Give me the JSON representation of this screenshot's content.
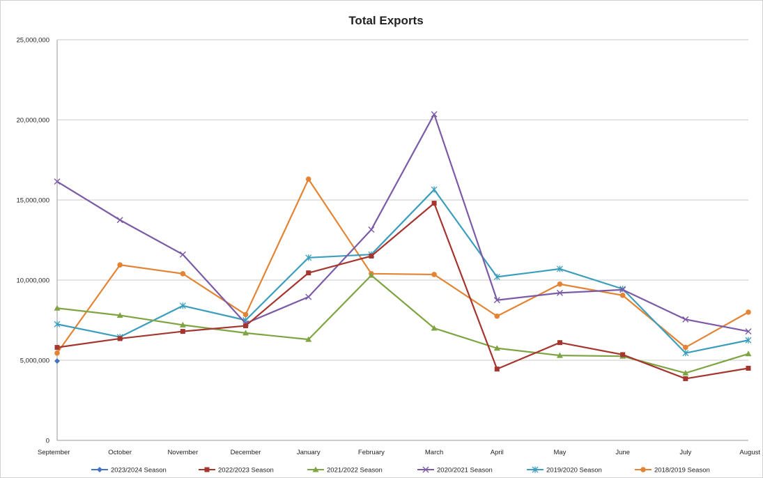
{
  "chart_data": {
    "type": "line",
    "title": "Total Exports",
    "xlabel": "",
    "ylabel": "",
    "categories": [
      "September",
      "October",
      "November",
      "December",
      "January",
      "February",
      "March",
      "April",
      "May",
      "June",
      "July",
      "August"
    ],
    "ylim": [
      0,
      25000000
    ],
    "yticks": [
      0,
      5000000,
      10000000,
      15000000,
      20000000,
      25000000
    ],
    "ytick_labels": [
      "0",
      "5,000,000",
      "10,000,000",
      "15,000,000",
      "20,000,000",
      "25,000,000"
    ],
    "grid": "horizontal",
    "legend_position": "bottom",
    "series": [
      {
        "name": "2023/2024 Season",
        "color": "#4472c4",
        "marker": "diamond",
        "values": [
          4950000,
          null,
          null,
          null,
          null,
          null,
          null,
          null,
          null,
          null,
          null,
          null
        ]
      },
      {
        "name": "2022/2023 Season",
        "color": "#a5352f",
        "marker": "square",
        "values": [
          5800000,
          6350000,
          6800000,
          7150000,
          10450000,
          11500000,
          14800000,
          4450000,
          6100000,
          5350000,
          3850000,
          4500000
        ]
      },
      {
        "name": "2021/2022 Season",
        "color": "#7ea443",
        "marker": "triangle",
        "values": [
          8250000,
          7800000,
          7200000,
          6700000,
          6300000,
          10300000,
          7000000,
          5750000,
          5300000,
          5250000,
          4200000,
          5400000
        ]
      },
      {
        "name": "2020/2021 Season",
        "color": "#7b5aa6",
        "marker": "x",
        "values": [
          16150000,
          13750000,
          11600000,
          7300000,
          8950000,
          13150000,
          20350000,
          8750000,
          9200000,
          9400000,
          7550000,
          6800000
        ]
      },
      {
        "name": "2019/2020 Season",
        "color": "#3b9ebc",
        "marker": "star",
        "values": [
          7250000,
          6450000,
          8400000,
          7500000,
          11400000,
          11600000,
          15650000,
          10200000,
          10700000,
          9450000,
          5450000,
          6250000
        ]
      },
      {
        "name": "2018/2019 Season",
        "color": "#e38434",
        "marker": "circle",
        "values": [
          5450000,
          10950000,
          10400000,
          7850000,
          16300000,
          10400000,
          10350000,
          7750000,
          9750000,
          9050000,
          5800000,
          8000000
        ]
      }
    ]
  }
}
